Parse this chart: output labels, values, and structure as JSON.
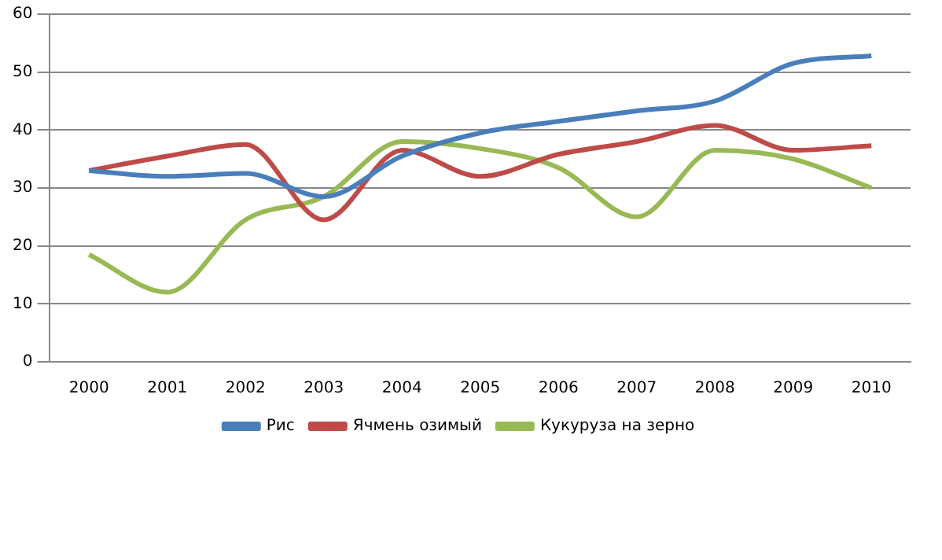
{
  "chart_data": {
    "type": "line",
    "categories": [
      "2000",
      "2001",
      "2002",
      "2003",
      "2004",
      "2005",
      "2006",
      "2007",
      "2008",
      "2009",
      "2010"
    ],
    "series": [
      {
        "name": "Рис",
        "color": "#4a7ebb",
        "values": [
          33,
          32,
          32.5,
          28.5,
          35.5,
          39.5,
          41.5,
          43.3,
          45,
          51.5,
          52.8
        ]
      },
      {
        "name": "Ячмень озимый",
        "color": "#be4b48",
        "values": [
          33,
          35.5,
          37.5,
          24.5,
          36.5,
          32,
          35.8,
          38,
          40.8,
          36.5,
          37.3
        ]
      },
      {
        "name": "Кукуруза на зерно",
        "color": "#98b954",
        "values": [
          18.5,
          12,
          24.5,
          28.5,
          38,
          36.8,
          33.5,
          25,
          36.5,
          35,
          30
        ]
      }
    ],
    "ylim": [
      0,
      60
    ],
    "yticks": [
      0,
      10,
      20,
      30,
      40,
      50,
      60
    ],
    "grid": "y",
    "legend": "bottom",
    "marker": "none",
    "line_style": "solid"
  }
}
